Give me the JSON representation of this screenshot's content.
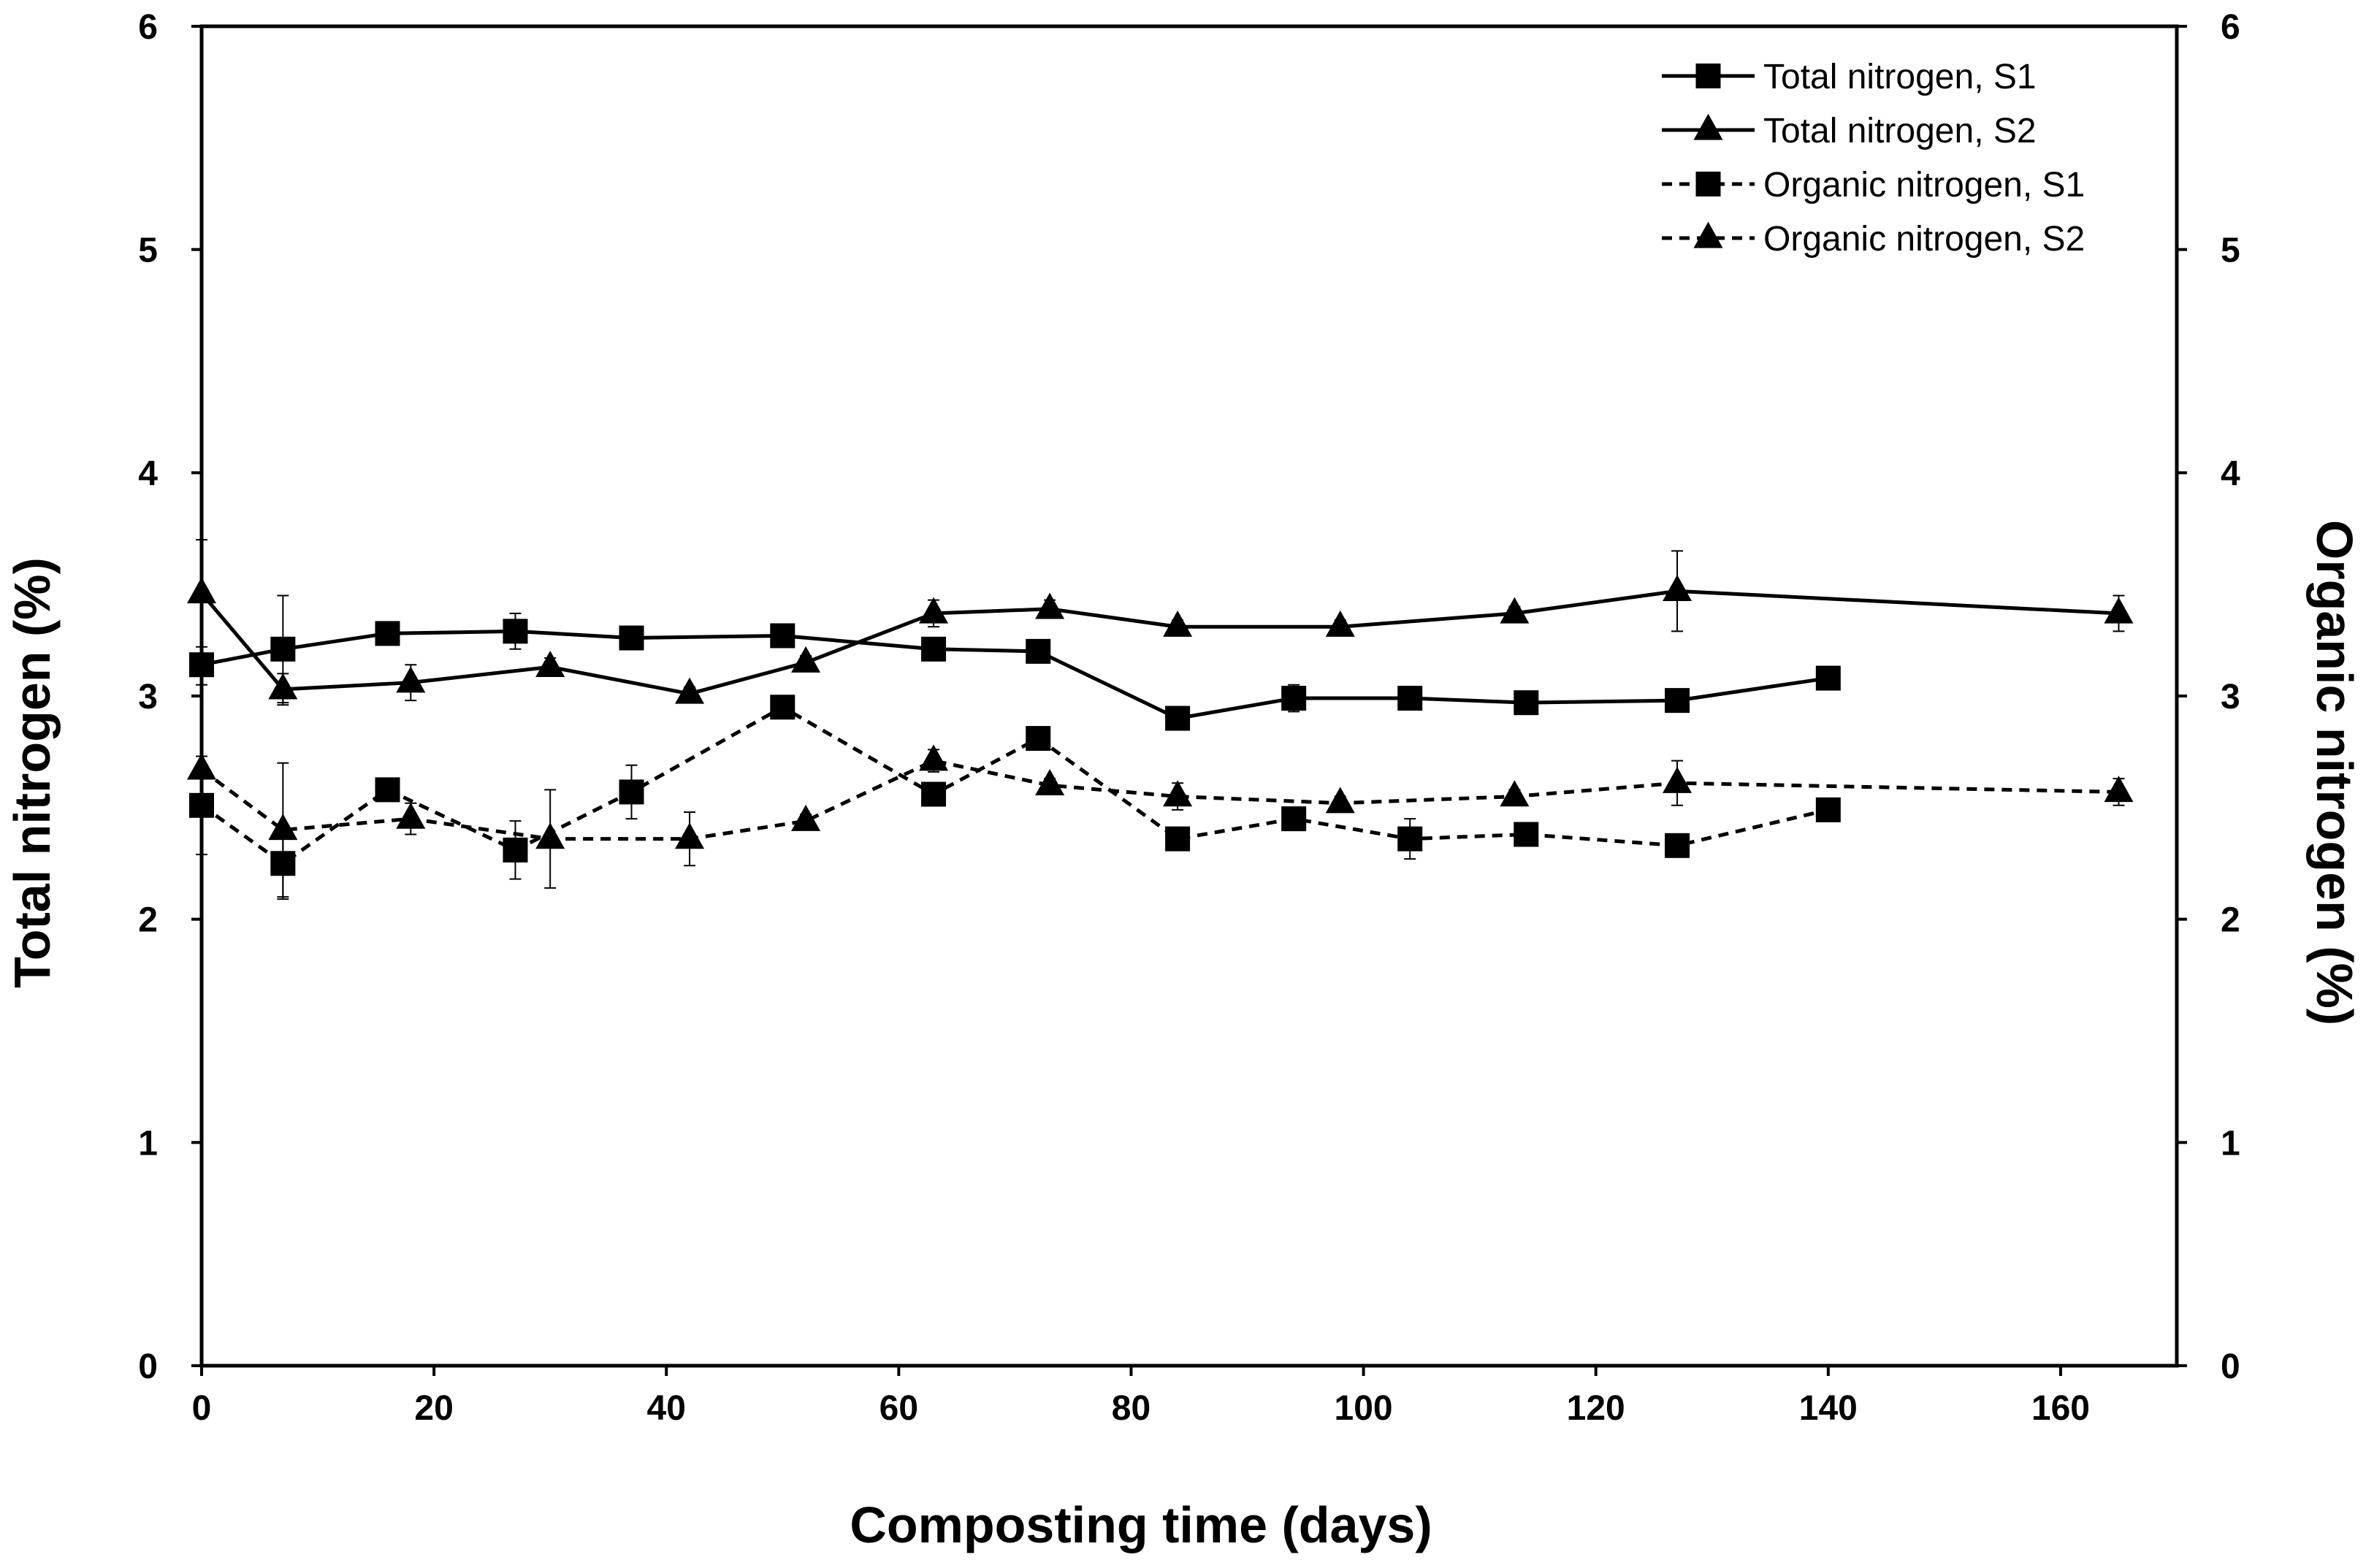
{
  "chart_data": {
    "type": "line",
    "title": "",
    "xlabel": "Composting time (days)",
    "ylabel_left": "Total nitrogen (%)",
    "ylabel_right": "Organic nitrogen (%)",
    "xlim": [
      0,
      170
    ],
    "ylim_left": [
      0,
      6
    ],
    "ylim_right": [
      0,
      6
    ],
    "x_ticks": [
      0,
      20,
      40,
      60,
      80,
      100,
      120,
      140,
      160
    ],
    "y_ticks_left": [
      0,
      1,
      2,
      3,
      4,
      5,
      6
    ],
    "y_ticks_right": [
      0,
      1,
      2,
      3,
      4,
      5,
      6
    ],
    "grid": false,
    "legend_position": "top-right",
    "series": [
      {
        "name": "Total nitrogen, S1",
        "marker": "square",
        "line_style": "solid",
        "axis": "left",
        "x": [
          0,
          7,
          16,
          27,
          37,
          50,
          63,
          72,
          84,
          94,
          104,
          114,
          127,
          140
        ],
        "y": [
          3.14,
          3.21,
          3.28,
          3.29,
          3.26,
          3.27,
          3.21,
          3.2,
          2.9,
          2.99,
          2.99,
          2.97,
          2.98,
          3.08
        ],
        "err": [
          0.05,
          0.24,
          0.03,
          0.08,
          0.03,
          0.03,
          0.03,
          0.02,
          0.03,
          0.06,
          0.02,
          0.03,
          0.02,
          0.02
        ]
      },
      {
        "name": "Total nitrogen, S2",
        "marker": "triangle",
        "line_style": "solid",
        "axis": "left",
        "x": [
          0,
          7,
          18,
          30,
          42,
          52,
          63,
          73,
          84,
          98,
          113,
          127,
          165
        ],
        "y": [
          3.46,
          3.03,
          3.06,
          3.13,
          3.01,
          3.15,
          3.37,
          3.39,
          3.31,
          3.31,
          3.37,
          3.47,
          3.37
        ],
        "err": [
          0.24,
          0.07,
          0.08,
          0.04,
          0.03,
          0.03,
          0.06,
          0.04,
          0.03,
          0.03,
          0.03,
          0.18,
          0.08
        ]
      },
      {
        "name": "Organic nitrogen, S1",
        "marker": "square",
        "line_style": "dashed",
        "axis": "right",
        "x": [
          0,
          7,
          16,
          27,
          37,
          50,
          63,
          72,
          84,
          94,
          104,
          114,
          127,
          140
        ],
        "y": [
          2.51,
          2.25,
          2.58,
          2.31,
          2.57,
          2.95,
          2.56,
          2.81,
          2.36,
          2.45,
          2.36,
          2.38,
          2.33,
          2.49
        ],
        "err": [
          0.22,
          0.16,
          0.03,
          0.13,
          0.12,
          0.03,
          0.05,
          0.05,
          0.03,
          0.03,
          0.09,
          0.03,
          0.03,
          0.02
        ]
      },
      {
        "name": "Organic nitrogen, S2",
        "marker": "triangle",
        "line_style": "dashed",
        "axis": "right",
        "x": [
          0,
          7,
          18,
          30,
          42,
          52,
          63,
          73,
          84,
          98,
          113,
          127,
          165
        ],
        "y": [
          2.67,
          2.4,
          2.45,
          2.36,
          2.36,
          2.44,
          2.71,
          2.6,
          2.55,
          2.52,
          2.55,
          2.61,
          2.57
        ],
        "err": [
          0.38,
          0.3,
          0.07,
          0.22,
          0.12,
          0.03,
          0.05,
          0.03,
          0.06,
          0.03,
          0.03,
          0.1,
          0.06
        ]
      }
    ]
  }
}
